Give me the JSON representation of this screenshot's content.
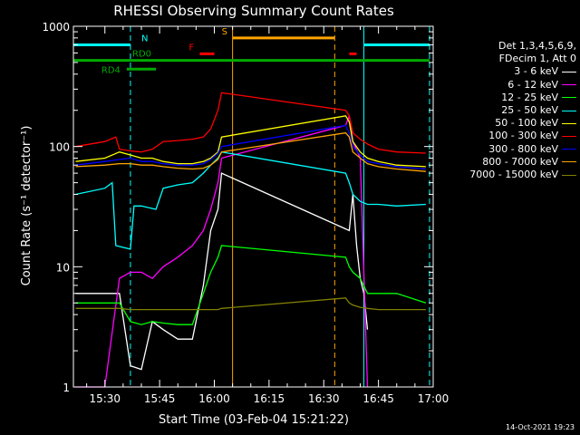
{
  "chart_data": {
    "type": "line",
    "title": "RHESSI Observing Summary Count Rates",
    "xlabel": "Start Time (03-Feb-04 15:21:22)",
    "ylabel": "Count Rate (s⁻¹ detector⁻¹)",
    "ylog": true,
    "xlim": [
      "15:21:22",
      "17:00:00"
    ],
    "ylim": [
      1,
      1000
    ],
    "x_ticks": [
      "15:30",
      "15:45",
      "16:00",
      "16:15",
      "16:30",
      "16:45",
      "17:00"
    ],
    "y_ticks": [
      "1",
      "10",
      "100",
      "1000"
    ],
    "legend_header": [
      "Det 1,3,4,5,6,9,",
      "FDecim 1, Att 0"
    ],
    "timestamp": "14-Oct-2021 19:23",
    "series": [
      {
        "name": "3 - 6 keV",
        "color": "#ffffff",
        "x": [
          "15:22",
          "15:30",
          "15:34",
          "15:37",
          "15:40",
          "15:43",
          "15:46",
          "15:50",
          "15:54",
          "15:57",
          "15:59",
          "16:01",
          "16:02",
          "16:37",
          "16:38",
          "16:39",
          "16:40",
          "16:41",
          "16:42"
        ],
        "y": [
          6,
          6,
          6,
          1.5,
          1.4,
          3.5,
          3,
          2.5,
          2.5,
          7,
          20,
          30,
          60,
          20,
          40,
          15,
          8,
          6,
          3
        ]
      },
      {
        "name": "6 - 12 keV",
        "color": "#ff00ff",
        "x": [
          "15:22",
          "15:30",
          "15:34",
          "15:37",
          "15:40",
          "15:43",
          "15:46",
          "15:50",
          "15:54",
          "15:57",
          "15:59",
          "16:01",
          "16:02",
          "16:36",
          "16:37",
          "16:38",
          "16:40",
          "16:42"
        ],
        "y": [
          1,
          1,
          8,
          9,
          9,
          8,
          10,
          12,
          15,
          20,
          30,
          50,
          80,
          150,
          180,
          110,
          80,
          1
        ]
      },
      {
        "name": "12 - 25 keV",
        "color": "#00ff00",
        "x": [
          "15:22",
          "15:30",
          "15:34",
          "15:37",
          "15:40",
          "15:43",
          "15:46",
          "15:50",
          "15:54",
          "15:57",
          "15:59",
          "16:01",
          "16:02",
          "16:36",
          "16:37",
          "16:38",
          "16:40",
          "16:42",
          "16:45",
          "16:50",
          "16:58"
        ],
        "y": [
          5,
          5,
          5,
          3.5,
          3.3,
          3.5,
          3.4,
          3.3,
          3.3,
          6,
          9,
          12,
          15,
          12,
          10,
          9,
          8,
          6,
          6,
          6,
          5
        ]
      },
      {
        "name": "25 - 50 keV",
        "color": "#00ffff",
        "x": [
          "15:22",
          "15:30",
          "15:32",
          "15:33",
          "15:37",
          "15:38",
          "15:40",
          "15:44",
          "15:46",
          "15:50",
          "15:54",
          "15:57",
          "15:59",
          "16:01",
          "16:02",
          "16:36",
          "16:37",
          "16:38",
          "16:40",
          "16:42",
          "16:45",
          "16:50",
          "16:58"
        ],
        "y": [
          40,
          45,
          50,
          15,
          14,
          32,
          32,
          30,
          45,
          48,
          50,
          60,
          70,
          80,
          90,
          60,
          50,
          40,
          35,
          33,
          33,
          32,
          33
        ]
      },
      {
        "name": "50 - 100 keV",
        "color": "#ffff00",
        "x": [
          "15:22",
          "15:30",
          "15:34",
          "15:37",
          "15:40",
          "15:43",
          "15:46",
          "15:50",
          "15:54",
          "15:57",
          "15:59",
          "16:01",
          "16:02",
          "16:36",
          "16:37",
          "16:38",
          "16:40",
          "16:42",
          "16:45",
          "16:50",
          "16:58"
        ],
        "y": [
          75,
          80,
          90,
          85,
          80,
          80,
          75,
          72,
          72,
          75,
          80,
          90,
          120,
          180,
          160,
          110,
          90,
          80,
          75,
          70,
          68
        ]
      },
      {
        "name": "100 - 300 keV",
        "color": "#ff0000",
        "x": [
          "15:22",
          "15:30",
          "15:33",
          "15:34",
          "15:37",
          "15:40",
          "15:43",
          "15:46",
          "15:50",
          "15:54",
          "15:57",
          "15:59",
          "16:01",
          "16:02",
          "16:36",
          "16:37",
          "16:38",
          "16:40",
          "16:42",
          "16:45",
          "16:50",
          "16:58"
        ],
        "y": [
          100,
          110,
          120,
          95,
          92,
          90,
          95,
          110,
          112,
          115,
          120,
          140,
          200,
          280,
          200,
          180,
          130,
          115,
          105,
          95,
          90,
          88
        ]
      },
      {
        "name": "300 - 800 keV",
        "color": "#0000ff",
        "x": [
          "15:22",
          "15:30",
          "15:34",
          "15:37",
          "15:40",
          "15:43",
          "15:46",
          "15:50",
          "15:54",
          "15:57",
          "15:59",
          "16:01",
          "16:02",
          "16:36",
          "16:37",
          "16:38",
          "16:40",
          "16:42",
          "16:45",
          "16:50",
          "16:58"
        ],
        "y": [
          70,
          75,
          78,
          80,
          75,
          75,
          72,
          70,
          70,
          72,
          78,
          88,
          100,
          150,
          130,
          100,
          85,
          75,
          72,
          68,
          65
        ]
      },
      {
        "name": "800 - 7000 keV",
        "color": "#ffa500",
        "x": [
          "15:22",
          "15:30",
          "15:34",
          "15:37",
          "15:40",
          "15:43",
          "15:46",
          "15:50",
          "15:54",
          "15:57",
          "15:59",
          "16:01",
          "16:02",
          "16:36",
          "16:37",
          "16:38",
          "16:40",
          "16:42",
          "16:45",
          "16:50",
          "16:58"
        ],
        "y": [
          68,
          70,
          72,
          72,
          70,
          70,
          68,
          66,
          65,
          66,
          70,
          78,
          90,
          130,
          120,
          90,
          80,
          72,
          68,
          65,
          62
        ]
      },
      {
        "name": "7000 - 15000 keV",
        "color": "#808000",
        "x": [
          "15:22",
          "15:30",
          "15:34",
          "15:37",
          "15:40",
          "15:43",
          "15:46",
          "15:50",
          "15:54",
          "15:57",
          "15:59",
          "16:01",
          "16:02",
          "16:36",
          "16:37",
          "16:38",
          "16:40",
          "16:42",
          "16:45",
          "16:50",
          "16:58"
        ],
        "y": [
          4.5,
          4.5,
          4.5,
          4.4,
          4.4,
          4.4,
          4.4,
          4.4,
          4.4,
          4.4,
          4.4,
          4.4,
          4.5,
          5.5,
          5,
          4.8,
          4.6,
          4.5,
          4.4,
          4.4,
          4.4
        ]
      }
    ],
    "flag_bars": [
      {
        "label": "N",
        "color": "#00ffff",
        "y": 700,
        "segments": [
          [
            "15:21:22",
            "15:37"
          ],
          [
            "16:41",
            "16:59"
          ]
        ]
      },
      {
        "label": "S",
        "color": "#ffa500",
        "y": 800,
        "segments": [
          [
            "16:05",
            "16:33"
          ]
        ]
      },
      {
        "label": "F",
        "color": "#ff0000",
        "y": 590,
        "segments": [
          [
            "15:56",
            "16:00"
          ],
          [
            "16:37",
            "16:39"
          ]
        ]
      },
      {
        "label": "RD0",
        "color": "#00aa00",
        "y": 520,
        "segments": [
          [
            "15:21:22",
            "16:59"
          ]
        ]
      },
      {
        "label": "RD4",
        "color": "#00aa00",
        "y": 440,
        "segments": [
          [
            "15:36",
            "15:44"
          ]
        ]
      }
    ],
    "vlines": [
      {
        "time": "15:21:22",
        "color": "#00ffff",
        "style": "solid"
      },
      {
        "time": "15:37",
        "color": "#00ffff",
        "style": "dashed"
      },
      {
        "time": "16:05",
        "color": "#ffa500",
        "style": "solid"
      },
      {
        "time": "16:33",
        "color": "#ffa500",
        "style": "dashed"
      },
      {
        "time": "16:41",
        "color": "#00ffff",
        "style": "solid"
      },
      {
        "time": "16:59",
        "color": "#00ffff",
        "style": "dashed"
      }
    ]
  }
}
